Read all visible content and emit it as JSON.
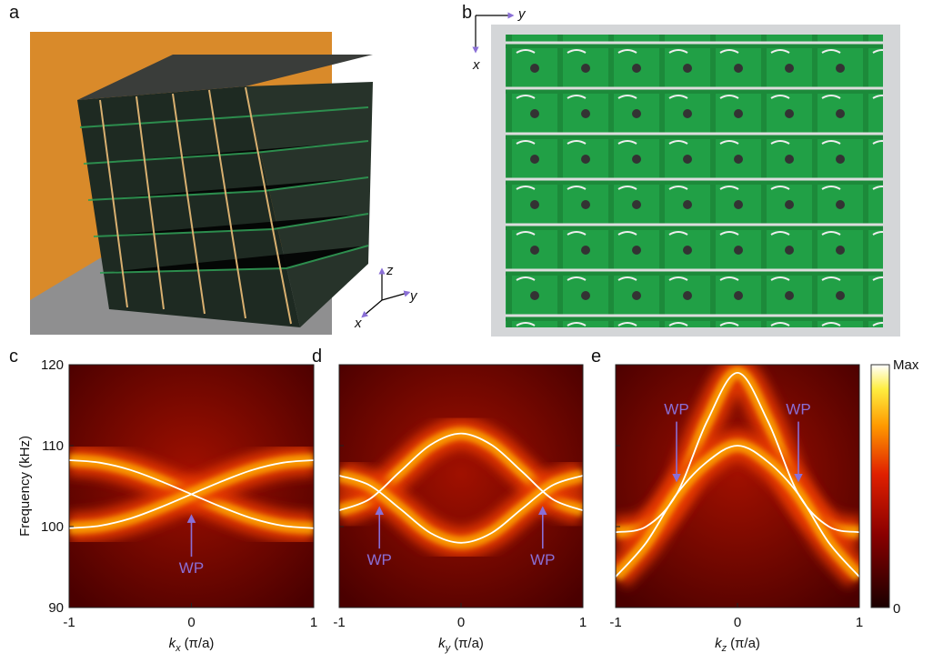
{
  "photos": [
    {
      "panel": "a",
      "axes": [
        "z",
        "y",
        "x"
      ]
    },
    {
      "panel": "b",
      "axes": [
        "y",
        "x"
      ]
    }
  ],
  "colorbar": {
    "max_label": "Max",
    "min_label": "0"
  },
  "chart_data": [
    {
      "type": "line",
      "panel": "c",
      "ylabel": "Frequency (kHz)",
      "xlabel": {
        "var": "k",
        "sub": "x",
        "unit": "(π/a)"
      },
      "x": [
        -1,
        -0.75,
        -0.5,
        -0.25,
        0,
        0.25,
        0.5,
        0.75,
        1
      ],
      "series": [
        {
          "color": "#ffffff",
          "values": [
            108.2,
            107.9,
            107.0,
            105.6,
            104,
            102.4,
            101.0,
            100.1,
            99.8
          ]
        },
        {
          "color": "#ffffff",
          "values": [
            99.8,
            100.1,
            101.0,
            102.4,
            104,
            105.6,
            107.0,
            107.9,
            108.2
          ]
        }
      ],
      "xlim": [
        -1,
        1
      ],
      "xticks": [
        -1,
        0,
        1
      ],
      "ylim": [
        90,
        120
      ],
      "yticks": [
        90,
        100,
        110,
        120
      ],
      "annotations": [
        {
          "text": "WP",
          "x": 0,
          "y": 101
        }
      ]
    },
    {
      "type": "line",
      "panel": "d",
      "xlabel": {
        "var": "k",
        "sub": "y",
        "unit": "(π/a)"
      },
      "x": [
        -1,
        -0.75,
        -0.5,
        -0.25,
        0,
        0.25,
        0.5,
        0.75,
        1
      ],
      "series": [
        {
          "color": "#ffffff",
          "values": [
            102.0,
            103.4,
            106.8,
            110.1,
            111.5,
            110.1,
            106.8,
            103.4,
            102.0
          ]
        },
        {
          "color": "#ffffff",
          "values": [
            106.3,
            105.1,
            102.2,
            99.2,
            98.0,
            99.2,
            102.2,
            105.1,
            106.3
          ]
        }
      ],
      "xlim": [
        -1,
        1
      ],
      "xticks": [
        -1,
        0,
        1
      ],
      "ylim": [
        90,
        120
      ],
      "yticks": [
        90,
        100,
        110,
        120
      ],
      "annotations": [
        {
          "text": "WP",
          "x": -0.67,
          "y": 102
        },
        {
          "text": "WP",
          "x": 0.67,
          "y": 102
        }
      ]
    },
    {
      "type": "line",
      "panel": "e",
      "xlabel": {
        "var": "k",
        "sub": "z",
        "unit": "(π/a)"
      },
      "x": [
        -1,
        -0.75,
        -0.5,
        -0.25,
        0,
        0.25,
        0.5,
        0.75,
        1
      ],
      "series": [
        {
          "color": "#ffffff",
          "values": [
            99.3,
            100.0,
            104.0,
            113.0,
            119.0,
            113.0,
            104.0,
            100.0,
            99.3
          ]
        },
        {
          "color": "#ffffff",
          "values": [
            93.8,
            98.0,
            104.0,
            108.0,
            110.0,
            108.0,
            104.0,
            98.0,
            93.8
          ]
        }
      ],
      "xlim": [
        -1,
        1
      ],
      "xticks": [
        -1,
        0,
        1
      ],
      "ylim": [
        90,
        120
      ],
      "yticks": [
        90,
        100,
        110,
        120
      ],
      "annotations": [
        {
          "text": "WP",
          "x": -0.5,
          "y": 106
        },
        {
          "text": "WP",
          "x": 0.5,
          "y": 106
        }
      ]
    }
  ]
}
